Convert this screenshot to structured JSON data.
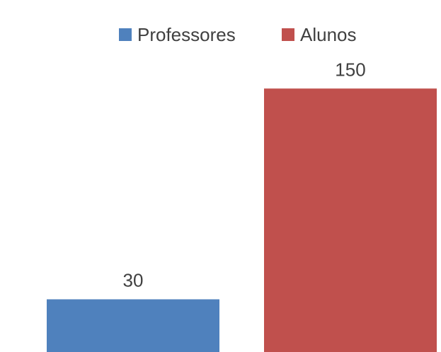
{
  "chart_data": {
    "type": "bar",
    "series": [
      {
        "name": "Professores",
        "values": [
          30
        ],
        "color": "#4f81bd"
      },
      {
        "name": "Alunos",
        "values": [
          150
        ],
        "color": "#c0504d"
      }
    ],
    "data_labels": [
      "30",
      "150"
    ],
    "legend_position": "top-center",
    "grid": false,
    "ylim": [
      0,
      180
    ]
  }
}
